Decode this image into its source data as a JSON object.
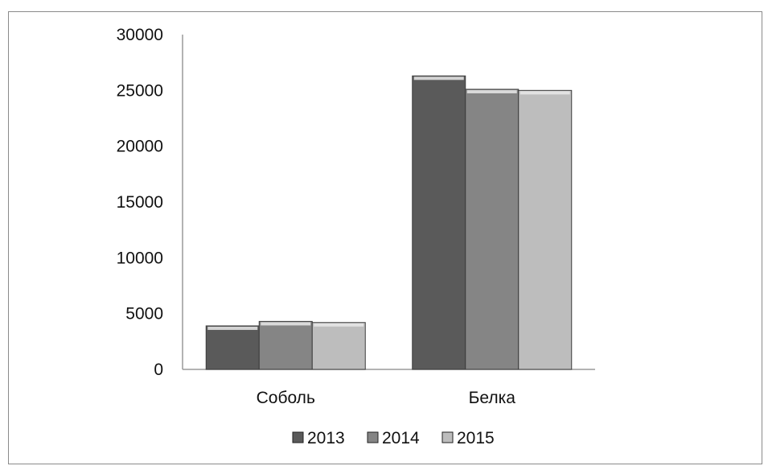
{
  "chart_data": {
    "type": "bar",
    "categories": [
      "Соболь",
      "Белка"
    ],
    "series": [
      {
        "name": "2013",
        "values": [
          3900,
          26300
        ],
        "color": "#5a5a5a"
      },
      {
        "name": "2014",
        "values": [
          4300,
          25100
        ],
        "color": "#858585"
      },
      {
        "name": "2015",
        "values": [
          4200,
          25000
        ],
        "color": "#bdbdbd"
      }
    ],
    "title": "",
    "xlabel": "",
    "ylabel": "",
    "ylim": [
      0,
      30000
    ],
    "yticks": [
      "0",
      "5000",
      "10000",
      "15000",
      "20000",
      "25000",
      "30000"
    ],
    "grid": false,
    "legend_position": "bottom"
  }
}
